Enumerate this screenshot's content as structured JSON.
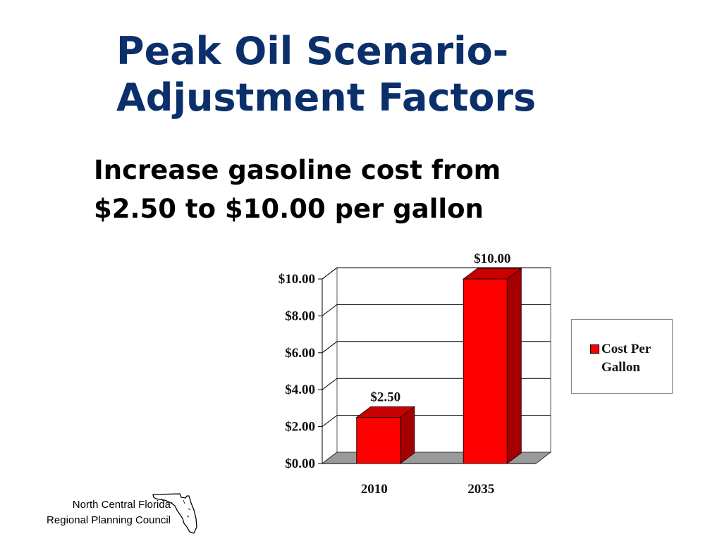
{
  "slide": {
    "title_line1": "Peak Oil Scenario-",
    "title_line2": "Adjustment Factors",
    "subtitle_line1": "Increase gasoline cost from",
    "subtitle_line2": "$2.50 to $10.00 per gallon"
  },
  "chart_data": {
    "type": "bar",
    "style": "3d-column",
    "categories": [
      "2010",
      "2035"
    ],
    "series": [
      {
        "name": "Cost Per Gallon",
        "values": [
          2.5,
          10.0
        ],
        "color": "#ff0000"
      }
    ],
    "data_labels": [
      "$2.50",
      "$10.00"
    ],
    "y_ticks": [
      "$0.00",
      "$2.00",
      "$4.00",
      "$6.00",
      "$8.00",
      "$10.00"
    ],
    "ylim": [
      0,
      10
    ],
    "ystep": 2,
    "grid": true,
    "legend_position": "right",
    "title": "",
    "xlabel": "",
    "ylabel": ""
  },
  "legend": {
    "line1": "Cost Per",
    "line2": "Gallon"
  },
  "footer": {
    "org_line1": "North Central Florida",
    "org_line2": "Regional Planning Council",
    "logo_icon": "florida-map-icon"
  }
}
